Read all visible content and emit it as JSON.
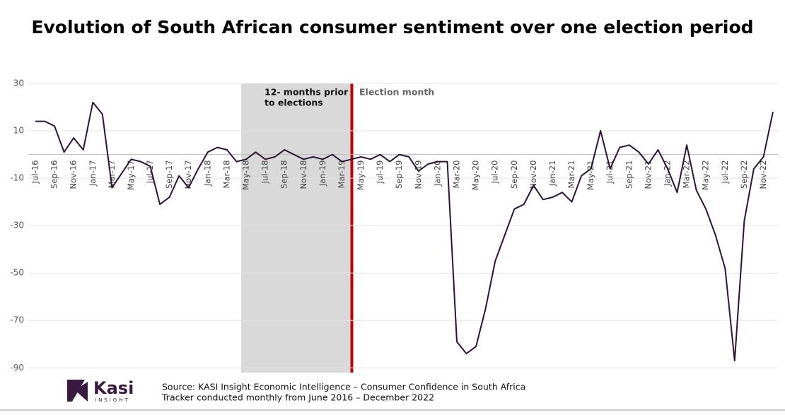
{
  "chart_data": {
    "type": "line",
    "title": "Evolution of South African consumer sentiment over one election period",
    "categories": [
      "Jul-16",
      null,
      "Sep-16",
      null,
      "Nov-16",
      null,
      "Jan-17",
      null,
      "Mar-17",
      null,
      "May-17",
      null,
      "Jul-17",
      null,
      "Sep-17",
      null,
      "Nov-17",
      null,
      "Jan-18",
      null,
      "Mar-18",
      null,
      "May-18",
      null,
      "Jul-18",
      null,
      "Sep-18",
      null,
      "Nov-18",
      null,
      "Jan-19",
      null,
      "Mar-19",
      null,
      "May-19",
      null,
      "Jul-19",
      null,
      "Sep-19",
      null,
      "Nov-19",
      null,
      "Jan-20",
      null,
      "Mar-20",
      null,
      "May-20",
      null,
      "Jul-20",
      null,
      "Sep-20",
      null,
      "Nov-20",
      null,
      "Jan-21",
      null,
      "Mar-21",
      null,
      "May-21",
      null,
      "Jul-21",
      null,
      "Sep-21",
      null,
      "Nov-21",
      null,
      "Jan-22",
      null,
      "Mar-22",
      null,
      "May-22",
      null,
      "Jul-22",
      null,
      "Sep-22",
      null,
      "Nov-22",
      null
    ],
    "values": [
      14,
      14,
      12,
      1,
      7,
      2,
      22,
      17,
      -14,
      -8,
      -2,
      -3,
      -5,
      -21,
      -18,
      -9,
      -14,
      -6,
      1,
      3,
      2,
      -3,
      -2,
      1,
      -2,
      -1,
      2,
      0,
      -2,
      -1,
      -2,
      0,
      -3,
      -2,
      -1,
      -2,
      0,
      -3,
      0,
      -1,
      -7,
      -4,
      -3,
      -3,
      -79,
      -84,
      -81,
      -65,
      -45,
      -34,
      -23,
      -21,
      -13,
      -19,
      -18,
      -16,
      -20,
      -9,
      -6,
      10,
      -6,
      3,
      4,
      1,
      -4,
      2,
      -6,
      -16,
      4,
      -15,
      -23,
      -34,
      -48,
      -87,
      -28,
      -6,
      -1,
      18
    ],
    "color": "#2e1237",
    "ylim": [
      -92,
      30
    ],
    "yticks": [
      30,
      10,
      -10,
      -30,
      -50,
      -70,
      -90
    ],
    "grid": true,
    "annotations": [
      {
        "lines": [
          "12- months prior",
          "to elections"
        ]
      },
      {
        "lines": [
          "Election month"
        ]
      }
    ],
    "logo": {
      "name": "Kasi",
      "sub": "INSIGHT"
    },
    "source": [
      "Source: KASI Insight Economic Intelligence – Consumer Confidence in South Africa",
      "Tracker conducted monthly from June 2016 – December 2022"
    ]
  }
}
